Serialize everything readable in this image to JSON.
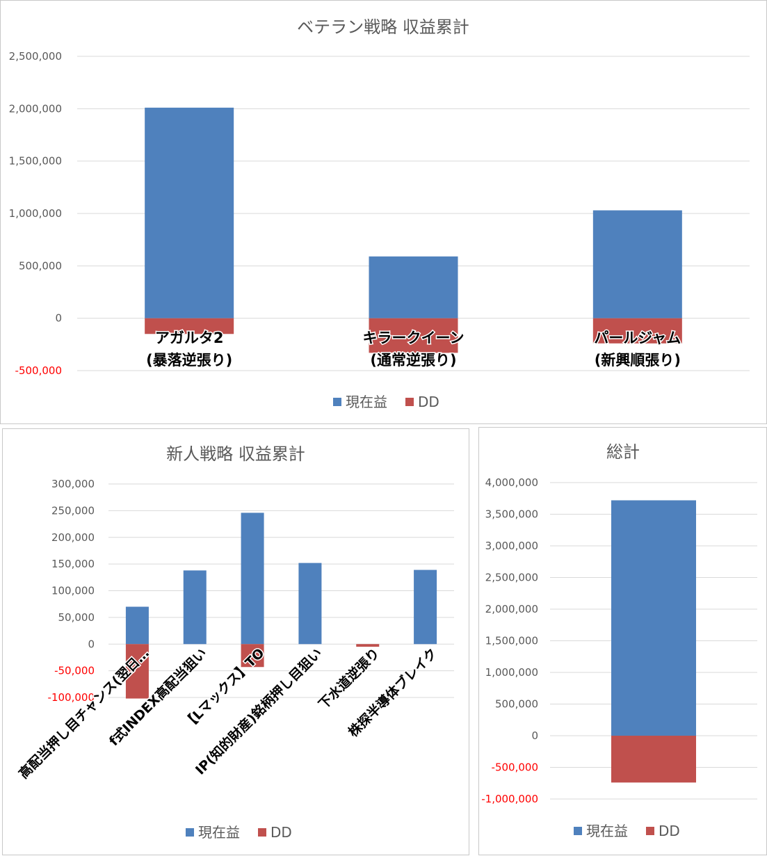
{
  "colors": {
    "profit": "#4f81bd",
    "dd": "#c0504d"
  },
  "legend": {
    "profit": "現在益",
    "dd": "DD"
  },
  "chart_data": [
    {
      "type": "bar",
      "title": "ベテラン戦略 収益累計",
      "categories": [
        [
          "アガルタ2",
          "(暴落逆張り)"
        ],
        [
          "キラークイーン",
          "(通常逆張り)"
        ],
        [
          "パールジャム",
          "(新興順張り)"
        ]
      ],
      "series": [
        {
          "name": "現在益",
          "values": [
            2010000,
            590000,
            1030000
          ]
        },
        {
          "name": "DD",
          "values": [
            -150000,
            -330000,
            -240000
          ]
        }
      ],
      "ylim": [
        -500000,
        2500000
      ],
      "yticks": [
        2500000,
        2000000,
        1500000,
        1000000,
        500000,
        0,
        -500000
      ],
      "ytick_labels": [
        "2,500,000",
        "2,000,000",
        "1,500,000",
        "1,000,000",
        "500,000",
        "0",
        "-500,000"
      ],
      "stacked": true,
      "grid": true,
      "legend_position": "bottom"
    },
    {
      "type": "bar",
      "title": "新人戦略 収益累計",
      "categories": [
        "高配当押し目チャンス(翌日…",
        "f式INDEX高配当狙い",
        "【Lマックス】TO",
        "IP(知的財産)銘柄押し目狙い",
        "下水道逆張り",
        "株探半導体ブレイク"
      ],
      "series": [
        {
          "name": "現在益",
          "values": [
            70000,
            138000,
            246000,
            152000,
            0,
            139000
          ]
        },
        {
          "name": "DD",
          "values": [
            -102000,
            0,
            -43000,
            0,
            -5000,
            0
          ]
        }
      ],
      "ylim": [
        -100000,
        300000
      ],
      "yticks": [
        300000,
        250000,
        200000,
        150000,
        100000,
        50000,
        0,
        -50000,
        -100000
      ],
      "ytick_labels": [
        "300,000",
        "250,000",
        "200,000",
        "150,000",
        "100,000",
        "50,000",
        "0",
        "-50,000",
        "-100,000"
      ],
      "stacked": true,
      "grid": true,
      "legend_position": "bottom"
    },
    {
      "type": "bar",
      "title": "総計",
      "categories": [
        ""
      ],
      "series": [
        {
          "name": "現在益",
          "values": [
            3720000
          ]
        },
        {
          "name": "DD",
          "values": [
            -740000
          ]
        }
      ],
      "ylim": [
        -1000000,
        4000000
      ],
      "yticks": [
        4000000,
        3500000,
        3000000,
        2500000,
        2000000,
        1500000,
        1000000,
        500000,
        0,
        -500000,
        -1000000
      ],
      "ytick_labels": [
        "4,000,000",
        "3,500,000",
        "3,000,000",
        "2,500,000",
        "2,000,000",
        "1,500,000",
        "1,000,000",
        "500,000",
        "0",
        "-500,000",
        "-1,000,000"
      ],
      "stacked": true,
      "grid": true,
      "legend_position": "bottom"
    }
  ]
}
